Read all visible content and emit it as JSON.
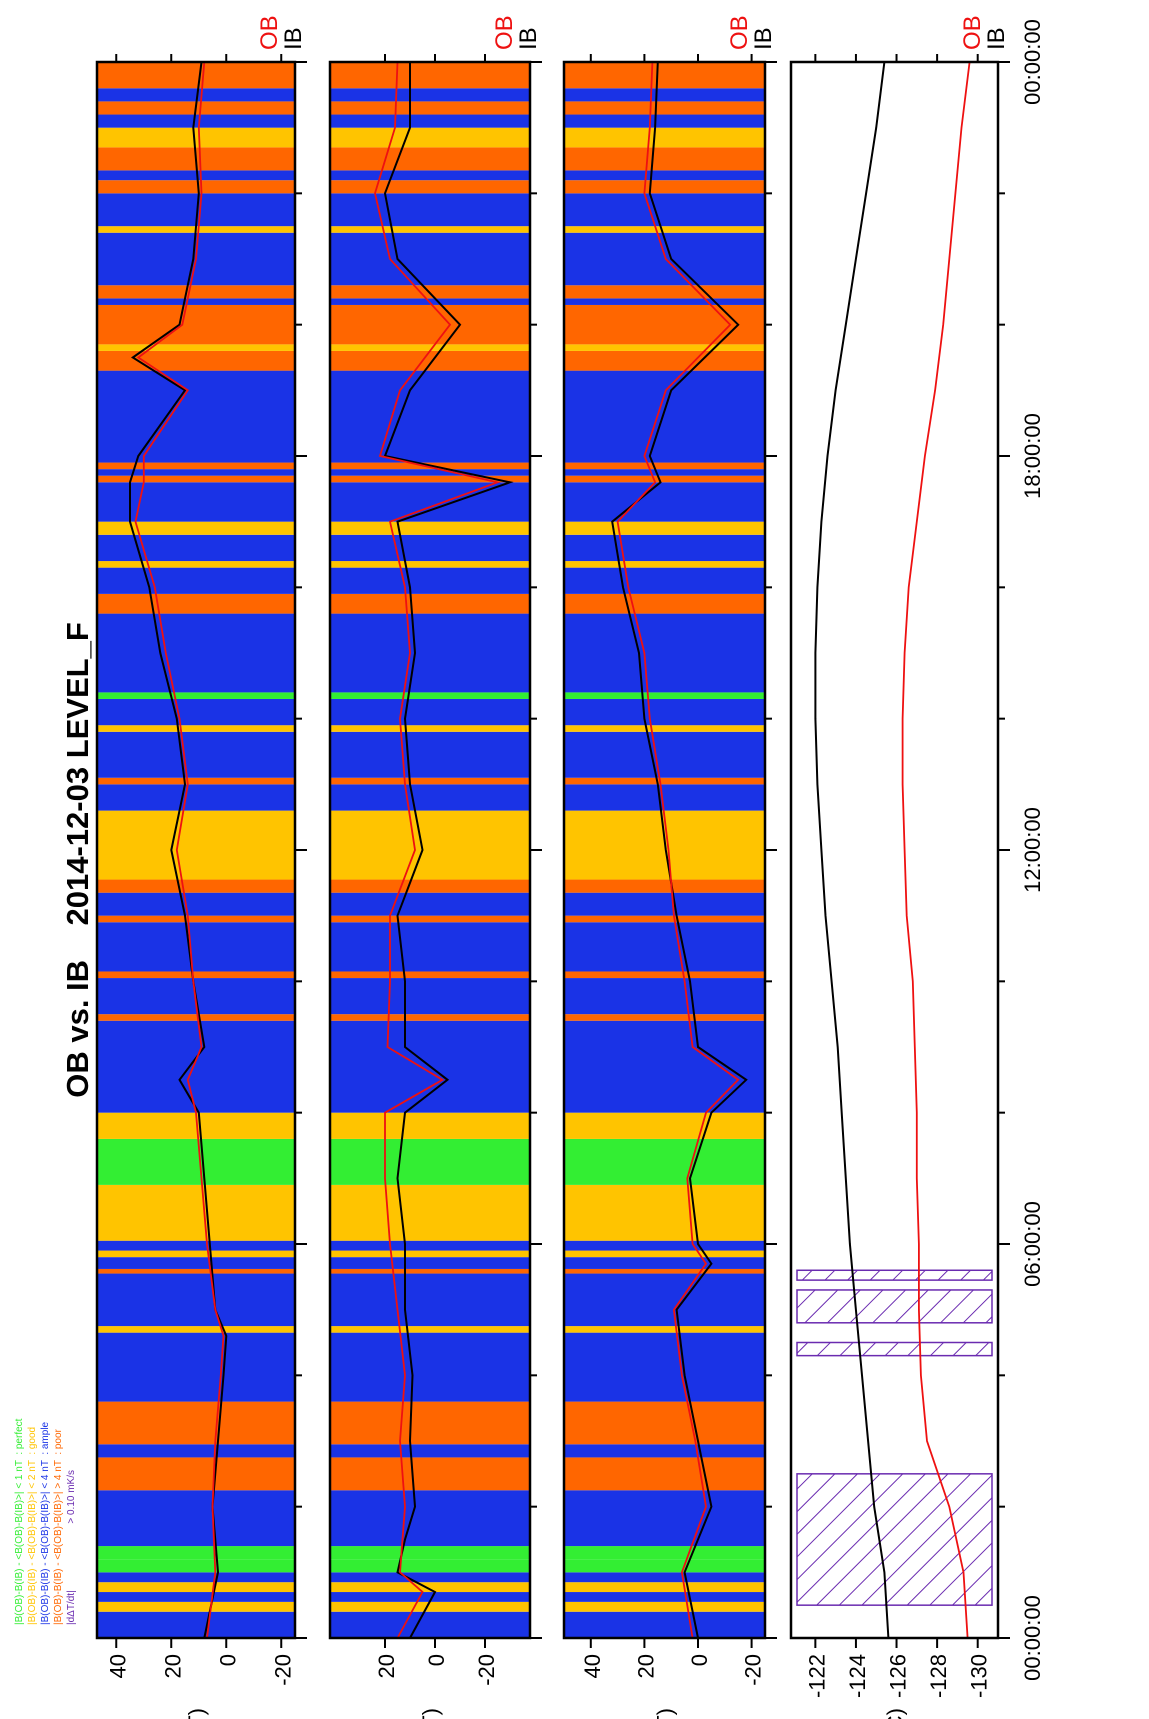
{
  "chart_data": {
    "type": "line",
    "title": "OB vs. IB    2014-12-03 LEVEL_F",
    "rotation": "rotated 90 degrees counter-clockwise",
    "time_axis": {
      "range_hours": [
        0,
        24
      ],
      "tick_labels": [
        "00:00:00",
        "06:00:00",
        "12:00:00",
        "18:00:00",
        "00:00:00"
      ],
      "tick_hours": [
        0,
        6,
        12,
        18,
        24
      ]
    },
    "legend": {
      "placement": "top-left",
      "entries": [
        {
          "text": "|B(OB)-B(IB) - <B(OB)-B(IB)>| < 1 nT  : perfect",
          "color": "#33ee33"
        },
        {
          "text": "|B(OB)-B(IB) - <B(OB)-B(IB)>| < 2 nT  : good",
          "color": "#ffc400"
        },
        {
          "text": "|B(OB)-B(IB) - <B(OB)-B(IB)>| < 4 nT  : ample",
          "color": "#1a33e6"
        },
        {
          "text": "|B(OB)-B(IB) - <B(OB)-B(IB)>| > 4 nT  : poor",
          "color": "#ff6600"
        },
        {
          "text": "|dΔT/dt|",
          "color": "#6a2bb0"
        },
        {
          "text": "> 0.10 mK/s",
          "color": "#6a2bb0"
        }
      ]
    },
    "series_labels": [
      {
        "name": "OB",
        "color": "#ee1111"
      },
      {
        "name": "IB",
        "color": "#000000"
      }
    ],
    "quality_colors": {
      "perfect": "#33ee33",
      "good": "#ffc400",
      "ample": "#1a33e6",
      "poor": "#ff6600"
    },
    "quality_segments": [
      {
        "start": 0.0,
        "end": 0.4,
        "q": "ample"
      },
      {
        "start": 0.4,
        "end": 0.55,
        "q": "good"
      },
      {
        "start": 0.55,
        "end": 0.7,
        "q": "ample"
      },
      {
        "start": 0.7,
        "end": 0.85,
        "q": "good"
      },
      {
        "start": 0.85,
        "end": 1.0,
        "q": "ample"
      },
      {
        "start": 1.0,
        "end": 1.2,
        "q": "perfect"
      },
      {
        "start": 1.2,
        "end": 1.4,
        "q": "perfect"
      },
      {
        "start": 1.4,
        "end": 2.25,
        "q": "ample"
      },
      {
        "start": 2.25,
        "end": 2.75,
        "q": "poor"
      },
      {
        "start": 2.75,
        "end": 2.95,
        "q": "ample"
      },
      {
        "start": 2.95,
        "end": 3.6,
        "q": "poor"
      },
      {
        "start": 3.6,
        "end": 4.65,
        "q": "ample"
      },
      {
        "start": 4.65,
        "end": 4.75,
        "q": "good"
      },
      {
        "start": 4.75,
        "end": 5.55,
        "q": "ample"
      },
      {
        "start": 5.55,
        "end": 5.62,
        "q": "poor"
      },
      {
        "start": 5.62,
        "end": 5.8,
        "q": "ample"
      },
      {
        "start": 5.8,
        "end": 5.9,
        "q": "good"
      },
      {
        "start": 5.9,
        "end": 6.05,
        "q": "ample"
      },
      {
        "start": 6.05,
        "end": 6.9,
        "q": "good"
      },
      {
        "start": 6.9,
        "end": 7.6,
        "q": "perfect"
      },
      {
        "start": 7.6,
        "end": 8.0,
        "q": "good"
      },
      {
        "start": 8.0,
        "end": 9.4,
        "q": "ample"
      },
      {
        "start": 9.4,
        "end": 9.5,
        "q": "poor"
      },
      {
        "start": 9.5,
        "end": 10.05,
        "q": "ample"
      },
      {
        "start": 10.05,
        "end": 10.15,
        "q": "poor"
      },
      {
        "start": 10.15,
        "end": 10.9,
        "q": "ample"
      },
      {
        "start": 10.9,
        "end": 11.0,
        "q": "poor"
      },
      {
        "start": 11.0,
        "end": 11.35,
        "q": "ample"
      },
      {
        "start": 11.35,
        "end": 11.55,
        "q": "poor"
      },
      {
        "start": 11.55,
        "end": 12.6,
        "q": "good"
      },
      {
        "start": 12.6,
        "end": 13.0,
        "q": "ample"
      },
      {
        "start": 13.0,
        "end": 13.1,
        "q": "poor"
      },
      {
        "start": 13.1,
        "end": 13.8,
        "q": "ample"
      },
      {
        "start": 13.8,
        "end": 13.9,
        "q": "good"
      },
      {
        "start": 13.9,
        "end": 14.3,
        "q": "ample"
      },
      {
        "start": 14.3,
        "end": 14.4,
        "q": "perfect"
      },
      {
        "start": 14.4,
        "end": 15.6,
        "q": "ample"
      },
      {
        "start": 15.6,
        "end": 15.9,
        "q": "poor"
      },
      {
        "start": 15.9,
        "end": 16.3,
        "q": "ample"
      },
      {
        "start": 16.3,
        "end": 16.4,
        "q": "good"
      },
      {
        "start": 16.4,
        "end": 16.8,
        "q": "ample"
      },
      {
        "start": 16.8,
        "end": 17.0,
        "q": "good"
      },
      {
        "start": 17.0,
        "end": 17.6,
        "q": "ample"
      },
      {
        "start": 17.6,
        "end": 17.7,
        "q": "poor"
      },
      {
        "start": 17.7,
        "end": 17.8,
        "q": "ample"
      },
      {
        "start": 17.8,
        "end": 17.9,
        "q": "poor"
      },
      {
        "start": 17.9,
        "end": 19.3,
        "q": "ample"
      },
      {
        "start": 19.3,
        "end": 19.6,
        "q": "poor"
      },
      {
        "start": 19.6,
        "end": 19.7,
        "q": "good"
      },
      {
        "start": 19.7,
        "end": 20.3,
        "q": "poor"
      },
      {
        "start": 20.3,
        "end": 20.4,
        "q": "ample"
      },
      {
        "start": 20.4,
        "end": 20.6,
        "q": "poor"
      },
      {
        "start": 20.6,
        "end": 21.4,
        "q": "ample"
      },
      {
        "start": 21.4,
        "end": 21.5,
        "q": "good"
      },
      {
        "start": 21.5,
        "end": 22.0,
        "q": "ample"
      },
      {
        "start": 22.0,
        "end": 22.2,
        "q": "poor"
      },
      {
        "start": 22.2,
        "end": 22.35,
        "q": "ample"
      },
      {
        "start": 22.35,
        "end": 22.7,
        "q": "poor"
      },
      {
        "start": 22.7,
        "end": 23.0,
        "q": "good"
      },
      {
        "start": 23.0,
        "end": 23.2,
        "q": "ample"
      },
      {
        "start": 23.2,
        "end": 23.4,
        "q": "poor"
      },
      {
        "start": 23.4,
        "end": 23.6,
        "q": "ample"
      },
      {
        "start": 23.6,
        "end": 24.0,
        "q": "poor"
      }
    ],
    "panels": [
      {
        "ylabel": "Bx (nT)",
        "ylim": [
          -25,
          47
        ],
        "yticks": [
          40,
          20,
          0,
          -20
        ],
        "ytick_labels": [
          "40",
          "20",
          "0",
          "-20"
        ],
        "series": [
          {
            "name": "IB",
            "color": "#000000",
            "x": [
              0,
              1,
              2,
              3,
              4,
              4.6,
              5,
              6,
              7,
              8,
              8.5,
              9,
              10,
              11,
              12,
              13,
              14,
              15,
              16,
              17,
              17.6,
              18,
              19,
              19.5,
              20,
              21,
              22,
              23,
              24
            ],
            "y": [
              8,
              3,
              5,
              3,
              1,
              0,
              4,
              6,
              8,
              10,
              17,
              8,
              12,
              15,
              20,
              15,
              18,
              24,
              28,
              35,
              35,
              32,
              15,
              34,
              17,
              12,
              10,
              12,
              9
            ]
          },
          {
            "name": "OB",
            "color": "#ee1111",
            "x": [
              0,
              1,
              2,
              3,
              4,
              4.6,
              5,
              6,
              7,
              8,
              8.5,
              9,
              10,
              11,
              12,
              13,
              14,
              15,
              16,
              17,
              17.6,
              18,
              19,
              19.5,
              20,
              21,
              22,
              23,
              24
            ],
            "y": [
              7,
              4,
              5,
              4,
              2,
              1,
              4,
              7,
              9,
              11,
              14,
              9,
              12,
              14,
              18,
              14,
              17,
              22,
              26,
              33,
              30,
              30,
              14,
              32,
              16,
              11,
              9,
              10,
              8
            ]
          }
        ]
      },
      {
        "ylabel": "By (nT)",
        "ylim": [
          -38,
          42
        ],
        "yticks": [
          20,
          0,
          -20
        ],
        "ytick_labels": [
          "20",
          "0",
          "-20"
        ],
        "series": [
          {
            "name": "IB",
            "color": "#000000",
            "x": [
              0,
              0.7,
              1,
              1.5,
              2,
              3,
              4,
              5,
              6,
              7,
              8,
              8.5,
              9,
              10,
              11,
              12,
              13,
              14,
              15,
              16,
              17,
              17.6,
              18,
              19,
              20,
              21,
              22,
              23,
              24
            ],
            "y": [
              10,
              0,
              15,
              12,
              8,
              10,
              9,
              12,
              12,
              15,
              12,
              -5,
              12,
              12,
              15,
              5,
              10,
              12,
              8,
              10,
              15,
              -30,
              20,
              10,
              -10,
              15,
              20,
              10,
              10
            ]
          },
          {
            "name": "OB",
            "color": "#ee1111",
            "x": [
              0,
              0.7,
              1,
              1.5,
              2,
              3,
              4,
              5,
              6,
              7,
              8,
              8.5,
              9,
              10,
              11,
              12,
              13,
              14,
              15,
              16,
              17,
              17.6,
              18,
              19,
              20,
              21,
              22,
              23,
              24
            ],
            "y": [
              15,
              5,
              14,
              13,
              12,
              14,
              12,
              15,
              18,
              20,
              20,
              -3,
              19,
              18,
              18,
              8,
              12,
              14,
              10,
              12,
              18,
              -25,
              22,
              14,
              -6,
              18,
              24,
              16,
              15
            ]
          }
        ]
      },
      {
        "ylabel": "Bz (nT)",
        "ylim": [
          -25,
          50
        ],
        "yticks": [
          40,
          20,
          0,
          -20
        ],
        "ytick_labels": [
          "40",
          "20",
          "0",
          "-20"
        ],
        "series": [
          {
            "name": "IB",
            "color": "#000000",
            "x": [
              0,
              1,
              2,
              3,
              4,
              5,
              5.7,
              6,
              7,
              8,
              8.5,
              9,
              10,
              11,
              12,
              13,
              14,
              15,
              16,
              17,
              17.6,
              18,
              19,
              20,
              21,
              22,
              23,
              24
            ],
            "y": [
              0,
              5,
              -5,
              0,
              5,
              8,
              -5,
              0,
              3,
              -5,
              -18,
              0,
              3,
              8,
              12,
              15,
              20,
              22,
              28,
              32,
              14,
              18,
              10,
              -15,
              10,
              18,
              16,
              15
            ]
          },
          {
            "name": "OB",
            "color": "#ee1111",
            "x": [
              0,
              1,
              2,
              3,
              4,
              5,
              5.7,
              6,
              7,
              8,
              8.5,
              9,
              10,
              11,
              12,
              13,
              14,
              15,
              16,
              17,
              17.6,
              18,
              19,
              20,
              21,
              22,
              23,
              24
            ],
            "y": [
              2,
              6,
              -3,
              1,
              6,
              9,
              -3,
              2,
              4,
              -3,
              -15,
              2,
              5,
              9,
              11,
              14,
              18,
              20,
              26,
              30,
              16,
              20,
              12,
              -12,
              12,
              20,
              18,
              17
            ]
          }
        ]
      },
      {
        "ylabel": "T (deg C)",
        "ylim": [
          -131,
          -120.8
        ],
        "yticks": [
          -122,
          -124,
          -126,
          -128,
          -130
        ],
        "ytick_labels": [
          "-122",
          "-124",
          "-126",
          "-128",
          "-130"
        ],
        "hatch_intervals": [
          [
            0.5,
            2.5
          ],
          [
            4.3,
            4.5
          ],
          [
            4.8,
            5.3
          ],
          [
            5.45,
            5.6
          ]
        ],
        "series": [
          {
            "name": "IB",
            "color": "#000000",
            "x": [
              0,
              1,
              2,
              3,
              4,
              5,
              6,
              7,
              8,
              9,
              10,
              11,
              12,
              13,
              14,
              15,
              16,
              17,
              18,
              19,
              20,
              21,
              22,
              23,
              24
            ],
            "y": [
              -125.6,
              -125.4,
              -124.9,
              -124.6,
              -124.3,
              -124.0,
              -123.7,
              -123.5,
              -123.3,
              -123.1,
              -122.8,
              -122.5,
              -122.3,
              -122.1,
              -122.0,
              -122.0,
              -122.1,
              -122.3,
              -122.6,
              -123.0,
              -123.5,
              -124.0,
              -124.5,
              -125.0,
              -125.4
            ]
          },
          {
            "name": "OB",
            "color": "#ee1111",
            "x": [
              0,
              1,
              2,
              3,
              4,
              5,
              6,
              7,
              8,
              9,
              10,
              11,
              12,
              13,
              14,
              15,
              16,
              17,
              18,
              19,
              20,
              21,
              22,
              23,
              24
            ],
            "y": [
              -129.5,
              -129.3,
              -128.6,
              -127.5,
              -127.2,
              -127.1,
              -127.1,
              -127.0,
              -127.0,
              -126.9,
              -126.8,
              -126.5,
              -126.4,
              -126.3,
              -126.3,
              -126.4,
              -126.6,
              -127.0,
              -127.4,
              -127.9,
              -128.3,
              -128.6,
              -128.9,
              -129.2,
              -129.6
            ]
          }
        ]
      }
    ]
  }
}
